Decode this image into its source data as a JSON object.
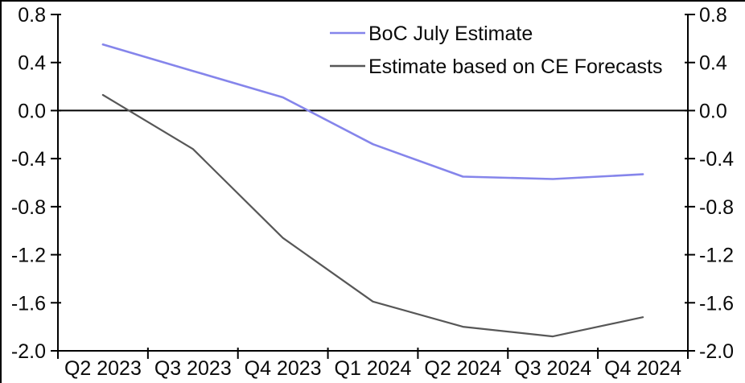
{
  "chart_data": {
    "type": "line",
    "title": "",
    "xlabel": "",
    "ylabel": "",
    "categories": [
      "Q2 2023",
      "Q3 2023",
      "Q4 2023",
      "Q1 2024",
      "Q2 2024",
      "Q3 2024",
      "Q4 2024"
    ],
    "series": [
      {
        "name": "BoC July Estimate",
        "color": "#8585eb",
        "stroke_width": 2.6,
        "values": [
          0.55,
          0.33,
          0.11,
          -0.28,
          -0.55,
          -0.57,
          -0.53
        ]
      },
      {
        "name": "Estimate based on CE Forecasts",
        "color": "#575757",
        "stroke_width": 2.2,
        "values": [
          0.13,
          -0.32,
          -1.06,
          -1.59,
          -1.8,
          -1.88,
          -1.72
        ]
      }
    ],
    "ylim": [
      -2.0,
      0.8
    ],
    "y_ticks": [
      0.8,
      0.4,
      0.0,
      -0.4,
      -0.8,
      -1.2,
      -1.6,
      -2.0
    ],
    "y_tick_labels": [
      "0.8",
      "0.4",
      "0.0",
      "-0.4",
      "-0.8",
      "-1.2",
      "-1.6",
      "-2.0"
    ],
    "dual_axis": true,
    "grid": false,
    "zero_line": true,
    "legend_position": "top-center",
    "axis_color": "#000000",
    "tick_label_font_px": 25
  }
}
